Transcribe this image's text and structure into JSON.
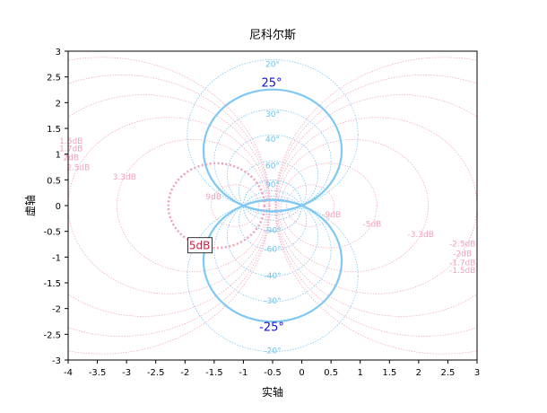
{
  "chart_data": {
    "type": "line",
    "title": "尼科尔斯",
    "xlabel": "实轴",
    "ylabel": "虚轴",
    "xlim": [
      -4,
      3
    ],
    "ylim": [
      -3,
      3
    ],
    "x_ticks": [
      "-4",
      "-3.5",
      "-3",
      "-2.5",
      "-2",
      "-1.5",
      "-1",
      "-0.5",
      "0",
      "0.5",
      "1",
      "1.5",
      "2",
      "2.5",
      "3"
    ],
    "y_ticks": [
      "3",
      "2.5",
      "2",
      "1.5",
      "1",
      "0.5",
      "0",
      "-0.5",
      "-1",
      "-1.5",
      "-2",
      "-2.5",
      "-3"
    ],
    "grid": "on",
    "colors": {
      "phase_grid": "#6cc0f0",
      "gain_grid": "#f4a0b8",
      "highlight_phase": "#80c8f4",
      "highlight_gain": "#f0a0b8"
    },
    "phase_contours": [
      {
        "label": "20°",
        "phi": 20
      },
      {
        "label": "30°",
        "phi": 30
      },
      {
        "label": "40°",
        "phi": 40
      },
      {
        "label": "60°",
        "phi": 60
      },
      {
        "label": "90°",
        "phi": 90
      },
      {
        "label": "-90°",
        "phi": -90
      },
      {
        "label": "-60°",
        "phi": -60
      },
      {
        "label": "-40°",
        "phi": -40
      },
      {
        "label": "-30°",
        "phi": -30
      },
      {
        "label": "-20°",
        "phi": -20
      }
    ],
    "gain_contours": [
      {
        "label": "-1.5dB",
        "db": -1.5
      },
      {
        "label": "-1.7dB",
        "db": -1.7
      },
      {
        "label": "-2dB",
        "db": -2
      },
      {
        "label": "-2.5dB",
        "db": -2.5
      },
      {
        "label": "-3.3dB",
        "db": -3.3
      },
      {
        "label": "-5dB",
        "db": -5
      },
      {
        "label": "-9dB",
        "db": -9
      },
      {
        "label": "9dB",
        "db": 9
      },
      {
        "label": "3.3dB",
        "db": 3.3
      },
      {
        "label": "2.5dB",
        "db": 2.5
      },
      {
        "label": "2dB",
        "db": 2
      },
      {
        "label": "1.7dB",
        "db": 1.7
      },
      {
        "label": "1.5dB",
        "db": 1.5
      }
    ],
    "highlighted_phase": [
      {
        "label": "25°",
        "phi": 25
      },
      {
        "label": "-25°",
        "phi": -25
      }
    ],
    "highlighted_gain": {
      "label": "5dB",
      "db": 5
    }
  }
}
